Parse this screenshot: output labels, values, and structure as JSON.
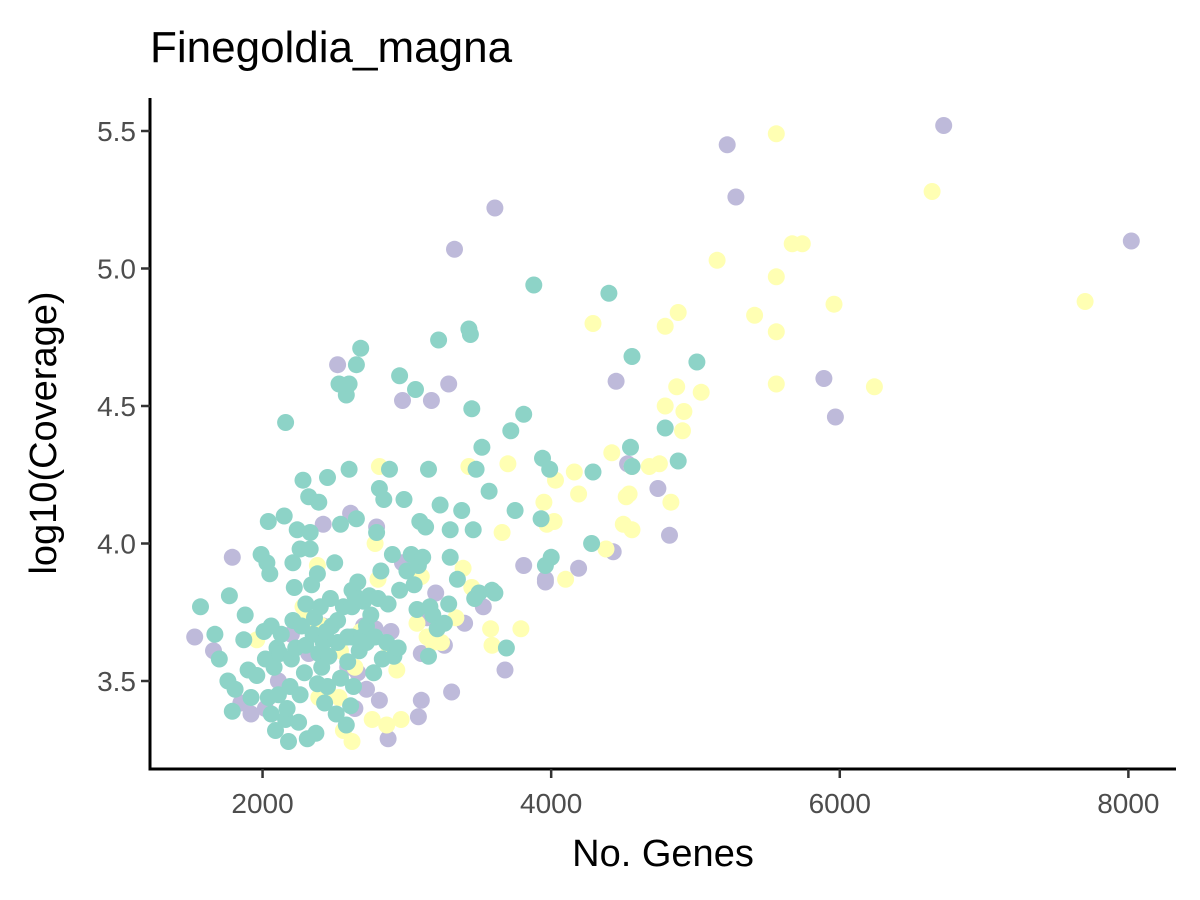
{
  "chart_data": {
    "type": "scatter",
    "title": "Finegoldia_magna",
    "xlabel": "No. Genes",
    "ylabel": "log10(Coverage)",
    "xlim": [
      1220,
      8330
    ],
    "ylim": [
      3.18,
      5.62
    ],
    "xticks": [
      2000,
      4000,
      6000,
      8000
    ],
    "yticks": [
      3.5,
      4.0,
      4.5,
      5.0,
      5.5
    ],
    "ytick_labels": [
      "3.5",
      "4.0",
      "4.5",
      "5.0",
      "5.5"
    ],
    "grid": false,
    "legend": "none",
    "colors": {
      "teal": "#8dd3c7",
      "purple": "#bebada",
      "yellow": "#ffffb3"
    },
    "series": [
      {
        "color": "#bebada",
        "points": [
          [
            1530,
            3.66
          ],
          [
            1660,
            3.61
          ],
          [
            1790,
            3.95
          ],
          [
            1850,
            3.42
          ],
          [
            1920,
            3.38
          ],
          [
            2020,
            3.4
          ],
          [
            2110,
            3.5
          ],
          [
            2200,
            3.67
          ],
          [
            2320,
            3.6
          ],
          [
            2420,
            3.7
          ],
          [
            2420,
            4.07
          ],
          [
            2520,
            4.65
          ],
          [
            2590,
            3.55
          ],
          [
            2610,
            4.11
          ],
          [
            2640,
            3.4
          ],
          [
            2660,
            3.53
          ],
          [
            2700,
            3.7
          ],
          [
            2720,
            3.47
          ],
          [
            2780,
            3.69
          ],
          [
            2790,
            4.06
          ],
          [
            2810,
            3.43
          ],
          [
            2870,
            3.29
          ],
          [
            2890,
            3.68
          ],
          [
            2970,
            3.93
          ],
          [
            2970,
            4.52
          ],
          [
            3080,
            3.37
          ],
          [
            3100,
            3.43
          ],
          [
            3100,
            3.6
          ],
          [
            3140,
            3.73
          ],
          [
            3170,
            4.52
          ],
          [
            3200,
            3.82
          ],
          [
            3260,
            3.63
          ],
          [
            3290,
            4.58
          ],
          [
            3310,
            3.46
          ],
          [
            3330,
            5.07
          ],
          [
            3400,
            3.71
          ],
          [
            3530,
            3.77
          ],
          [
            3610,
            5.22
          ],
          [
            3680,
            3.54
          ],
          [
            3810,
            3.92
          ],
          [
            3960,
            3.87
          ],
          [
            3960,
            3.86
          ],
          [
            4190,
            3.91
          ],
          [
            4430,
            3.97
          ],
          [
            4450,
            4.59
          ],
          [
            4530,
            4.29
          ],
          [
            4740,
            4.2
          ],
          [
            4820,
            4.03
          ],
          [
            5220,
            5.45
          ],
          [
            5280,
            5.26
          ],
          [
            5890,
            4.6
          ],
          [
            5970,
            4.46
          ],
          [
            6720,
            5.52
          ],
          [
            8020,
            5.1
          ]
        ]
      },
      {
        "color": "#ffffb3",
        "points": [
          [
            1960,
            3.65
          ],
          [
            2280,
            3.77
          ],
          [
            2300,
            3.72
          ],
          [
            2380,
            3.92
          ],
          [
            2390,
            3.44
          ],
          [
            2410,
            3.7
          ],
          [
            2450,
            3.47
          ],
          [
            2530,
            3.44
          ],
          [
            2540,
            3.61
          ],
          [
            2560,
            3.32
          ],
          [
            2620,
            3.28
          ],
          [
            2640,
            3.55
          ],
          [
            2680,
            3.68
          ],
          [
            2760,
            3.36
          ],
          [
            2780,
            4.0
          ],
          [
            2800,
            3.87
          ],
          [
            2810,
            4.28
          ],
          [
            2860,
            3.34
          ],
          [
            2880,
            3.62
          ],
          [
            2930,
            3.54
          ],
          [
            2960,
            3.36
          ],
          [
            3070,
            3.71
          ],
          [
            3100,
            3.88
          ],
          [
            3140,
            3.66
          ],
          [
            3180,
            3.64
          ],
          [
            3240,
            3.64
          ],
          [
            3340,
            3.73
          ],
          [
            3390,
            3.91
          ],
          [
            3430,
            4.28
          ],
          [
            3450,
            3.84
          ],
          [
            3580,
            3.69
          ],
          [
            3590,
            3.63
          ],
          [
            3660,
            4.04
          ],
          [
            3700,
            4.29
          ],
          [
            3790,
            3.69
          ],
          [
            3950,
            4.15
          ],
          [
            3970,
            4.07
          ],
          [
            4020,
            4.08
          ],
          [
            4030,
            4.23
          ],
          [
            4100,
            3.87
          ],
          [
            4160,
            4.26
          ],
          [
            4190,
            4.18
          ],
          [
            4290,
            4.8
          ],
          [
            4380,
            3.98
          ],
          [
            4420,
            4.33
          ],
          [
            4500,
            4.07
          ],
          [
            4520,
            4.17
          ],
          [
            4540,
            4.18
          ],
          [
            4560,
            4.05
          ],
          [
            4560,
            4.28
          ],
          [
            4680,
            4.28
          ],
          [
            4750,
            4.29
          ],
          [
            4790,
            4.5
          ],
          [
            4790,
            4.79
          ],
          [
            4830,
            4.15
          ],
          [
            4870,
            4.57
          ],
          [
            4880,
            4.84
          ],
          [
            4910,
            4.41
          ],
          [
            4920,
            4.48
          ],
          [
            5040,
            4.55
          ],
          [
            5150,
            5.03
          ],
          [
            5410,
            4.83
          ],
          [
            5560,
            5.49
          ],
          [
            5560,
            4.97
          ],
          [
            5560,
            4.77
          ],
          [
            5560,
            4.58
          ],
          [
            5670,
            5.09
          ],
          [
            5740,
            5.09
          ],
          [
            5960,
            4.87
          ],
          [
            6240,
            4.57
          ],
          [
            6640,
            5.28
          ],
          [
            7700,
            4.88
          ]
        ]
      },
      {
        "color": "#8dd3c7",
        "points": [
          [
            1570,
            3.77
          ],
          [
            1670,
            3.67
          ],
          [
            1700,
            3.58
          ],
          [
            1760,
            3.5
          ],
          [
            1770,
            3.81
          ],
          [
            1790,
            3.39
          ],
          [
            1810,
            3.47
          ],
          [
            1870,
            3.65
          ],
          [
            1880,
            3.74
          ],
          [
            1900,
            3.54
          ],
          [
            1920,
            3.44
          ],
          [
            1960,
            3.52
          ],
          [
            1990,
            3.96
          ],
          [
            2010,
            3.68
          ],
          [
            2020,
            3.58
          ],
          [
            2030,
            3.93
          ],
          [
            2040,
            3.44
          ],
          [
            2040,
            4.08
          ],
          [
            2050,
            3.89
          ],
          [
            2060,
            3.38
          ],
          [
            2060,
            3.7
          ],
          [
            2080,
            3.55
          ],
          [
            2090,
            3.32
          ],
          [
            2100,
            3.62
          ],
          [
            2110,
            3.45
          ],
          [
            2120,
            3.6
          ],
          [
            2130,
            3.67
          ],
          [
            2150,
            4.1
          ],
          [
            2160,
            3.36
          ],
          [
            2160,
            4.44
          ],
          [
            2170,
            3.4
          ],
          [
            2180,
            3.28
          ],
          [
            2190,
            3.48
          ],
          [
            2200,
            3.58
          ],
          [
            2210,
            3.72
          ],
          [
            2210,
            3.93
          ],
          [
            2220,
            3.84
          ],
          [
            2230,
            3.62
          ],
          [
            2240,
            4.05
          ],
          [
            2250,
            3.35
          ],
          [
            2260,
            3.45
          ],
          [
            2260,
            3.98
          ],
          [
            2270,
            3.7
          ],
          [
            2280,
            4.23
          ],
          [
            2290,
            3.53
          ],
          [
            2300,
            3.63
          ],
          [
            2300,
            3.78
          ],
          [
            2310,
            3.29
          ],
          [
            2320,
            4.17
          ],
          [
            2330,
            3.98
          ],
          [
            2330,
            4.04
          ],
          [
            2340,
            3.85
          ],
          [
            2350,
            3.67
          ],
          [
            2360,
            3.73
          ],
          [
            2370,
            3.31
          ],
          [
            2380,
            3.49
          ],
          [
            2380,
            3.89
          ],
          [
            2390,
            3.6
          ],
          [
            2390,
            4.15
          ],
          [
            2400,
            3.77
          ],
          [
            2410,
            3.55
          ],
          [
            2420,
            3.64
          ],
          [
            2430,
            3.42
          ],
          [
            2440,
            3.68
          ],
          [
            2450,
            3.48
          ],
          [
            2450,
            4.24
          ],
          [
            2460,
            3.59
          ],
          [
            2470,
            3.8
          ],
          [
            2480,
            3.7
          ],
          [
            2500,
            3.93
          ],
          [
            2510,
            3.38
          ],
          [
            2520,
            3.64
          ],
          [
            2520,
            3.72
          ],
          [
            2530,
            4.58
          ],
          [
            2540,
            4.07
          ],
          [
            2540,
            3.51
          ],
          [
            2560,
            3.77
          ],
          [
            2580,
            3.34
          ],
          [
            2580,
            4.54
          ],
          [
            2590,
            3.57
          ],
          [
            2590,
            3.66
          ],
          [
            2600,
            4.58
          ],
          [
            2600,
            4.27
          ],
          [
            2610,
            3.41
          ],
          [
            2620,
            3.83
          ],
          [
            2620,
            3.66
          ],
          [
            2620,
            3.77
          ],
          [
            2630,
            3.48
          ],
          [
            2640,
            3.81
          ],
          [
            2650,
            4.09
          ],
          [
            2650,
            4.65
          ],
          [
            2660,
            3.86
          ],
          [
            2670,
            3.61
          ],
          [
            2680,
            4.71
          ],
          [
            2690,
            3.66
          ],
          [
            2700,
            3.79
          ],
          [
            2720,
            3.7
          ],
          [
            2720,
            3.64
          ],
          [
            2740,
            3.81
          ],
          [
            2750,
            3.74
          ],
          [
            2770,
            3.53
          ],
          [
            2780,
            3.66
          ],
          [
            2790,
            4.04
          ],
          [
            2800,
            3.8
          ],
          [
            2810,
            4.2
          ],
          [
            2820,
            3.9
          ],
          [
            2830,
            3.58
          ],
          [
            2840,
            4.16
          ],
          [
            2860,
            3.64
          ],
          [
            2870,
            3.78
          ],
          [
            2880,
            4.27
          ],
          [
            2900,
            3.96
          ],
          [
            2910,
            3.59
          ],
          [
            2940,
            3.62
          ],
          [
            2950,
            4.61
          ],
          [
            2950,
            3.83
          ],
          [
            2980,
            4.16
          ],
          [
            3000,
            3.9
          ],
          [
            3030,
            3.96
          ],
          [
            3050,
            3.85
          ],
          [
            3060,
            4.56
          ],
          [
            3070,
            3.76
          ],
          [
            3080,
            3.92
          ],
          [
            3090,
            4.08
          ],
          [
            3110,
            3.95
          ],
          [
            3130,
            4.06
          ],
          [
            3150,
            4.27
          ],
          [
            3150,
            3.59
          ],
          [
            3160,
            3.77
          ],
          [
            3180,
            3.74
          ],
          [
            3210,
            3.69
          ],
          [
            3220,
            4.74
          ],
          [
            3230,
            4.14
          ],
          [
            3260,
            3.71
          ],
          [
            3290,
            3.78
          ],
          [
            3300,
            4.05
          ],
          [
            3300,
            3.95
          ],
          [
            3350,
            3.87
          ],
          [
            3380,
            4.12
          ],
          [
            3430,
            4.78
          ],
          [
            3440,
            4.76
          ],
          [
            3450,
            4.49
          ],
          [
            3460,
            4.05
          ],
          [
            3470,
            3.8
          ],
          [
            3480,
            4.27
          ],
          [
            3500,
            3.82
          ],
          [
            3520,
            4.35
          ],
          [
            3570,
            4.19
          ],
          [
            3590,
            3.83
          ],
          [
            3610,
            3.82
          ],
          [
            3690,
            3.62
          ],
          [
            3720,
            4.41
          ],
          [
            3750,
            4.12
          ],
          [
            3810,
            4.47
          ],
          [
            3880,
            4.94
          ],
          [
            3930,
            4.09
          ],
          [
            3940,
            4.31
          ],
          [
            3960,
            3.92
          ],
          [
            3990,
            4.27
          ],
          [
            4000,
            3.95
          ],
          [
            4280,
            4.0
          ],
          [
            4290,
            4.26
          ],
          [
            4400,
            4.91
          ],
          [
            4550,
            4.35
          ],
          [
            4560,
            4.68
          ],
          [
            4560,
            4.28
          ],
          [
            4790,
            4.42
          ],
          [
            4880,
            4.3
          ],
          [
            5010,
            4.66
          ]
        ]
      }
    ]
  }
}
